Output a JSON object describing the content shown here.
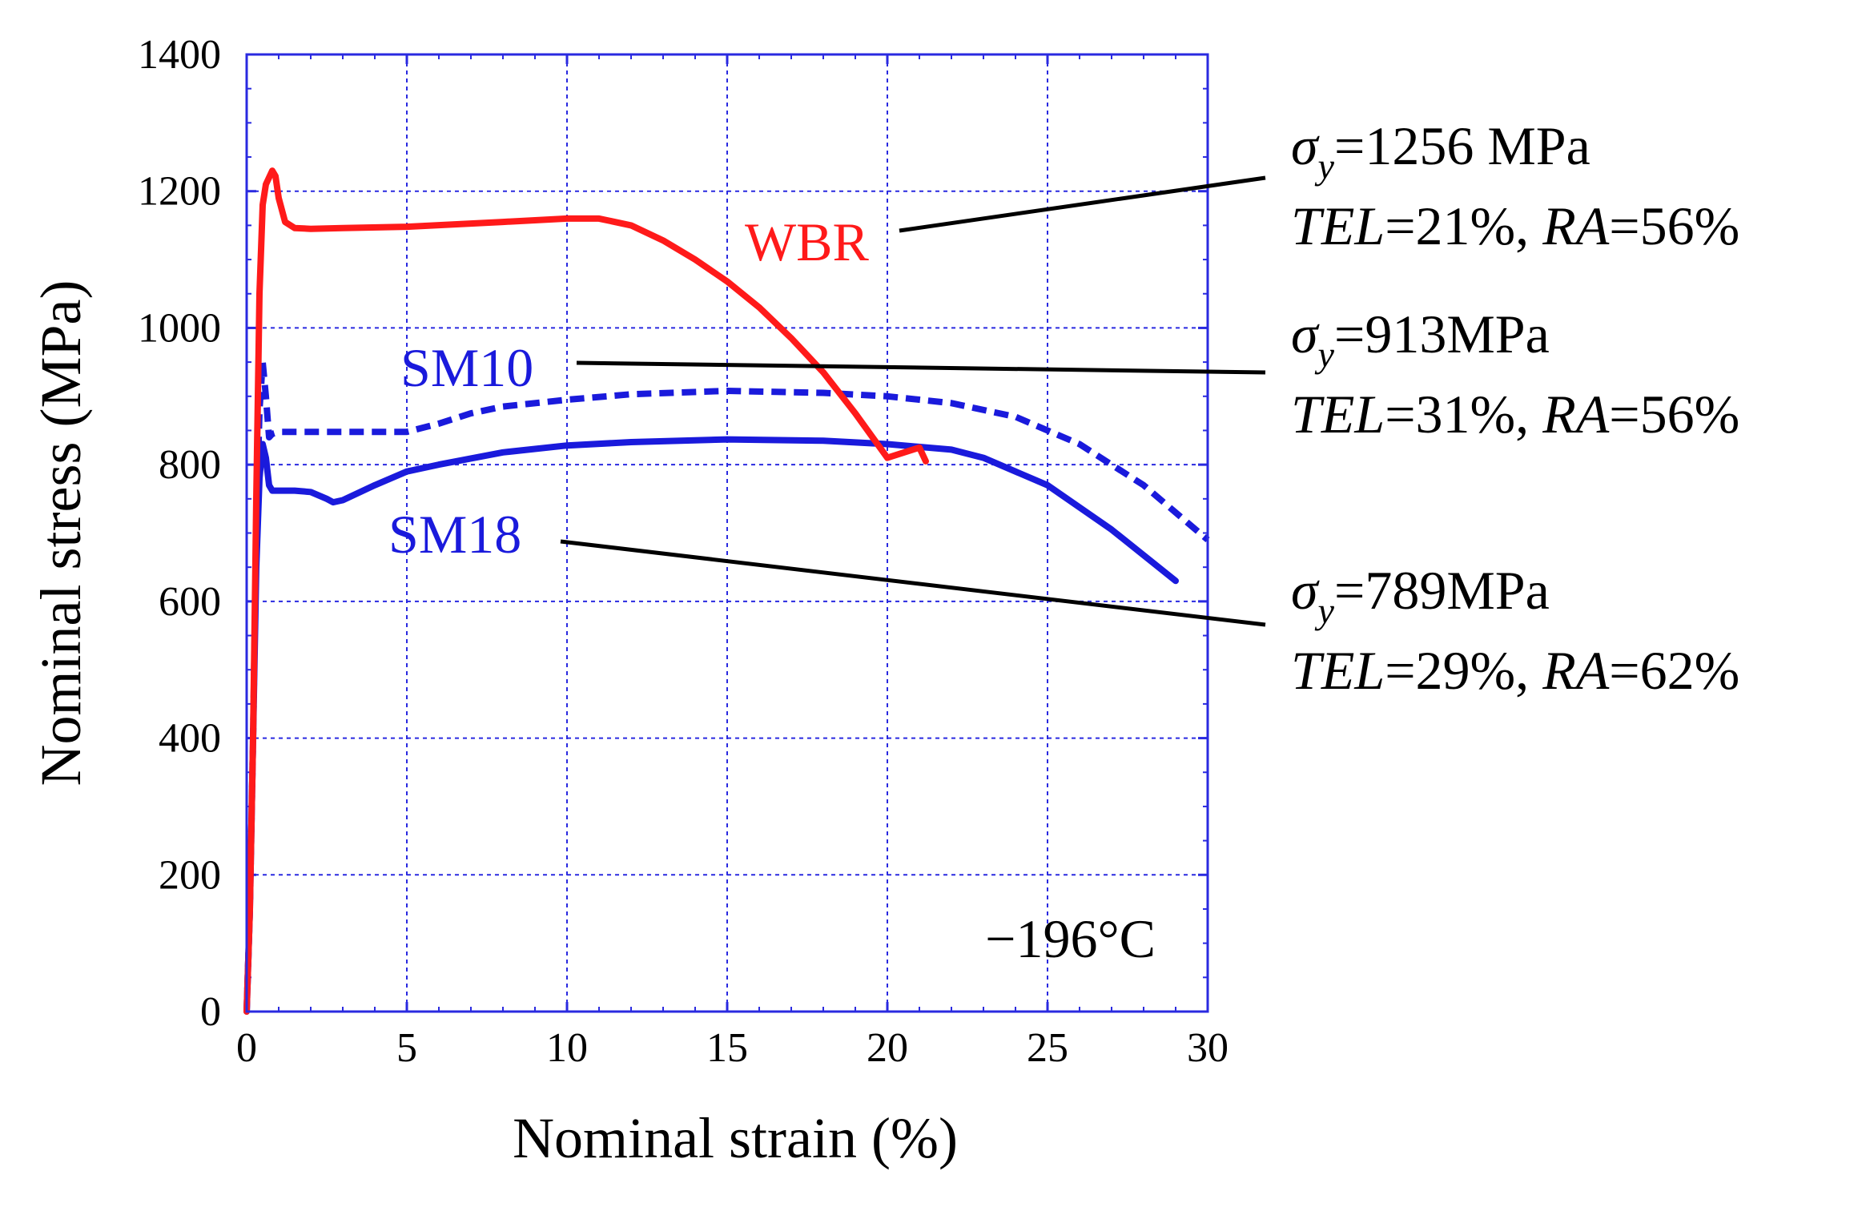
{
  "chart_data": {
    "type": "line",
    "title": "",
    "xlabel": "Nominal strain (%)",
    "ylabel": "Nominal stress (MPa)",
    "xlim": [
      0,
      30
    ],
    "ylim": [
      0,
      1400
    ],
    "xticks": [
      0,
      5,
      10,
      15,
      20,
      25,
      30
    ],
    "yticks": [
      0,
      200,
      400,
      600,
      800,
      1000,
      1200,
      1400
    ],
    "grid": true,
    "temperature": "−196°C",
    "colors": {
      "WBR": "#ff1a1a",
      "SM": "#1a1adc",
      "grid": "#2a2ae0",
      "annotation": "#000000"
    },
    "series": [
      {
        "name": "SM10",
        "label": "SM10",
        "color": "#1a1adc",
        "dash": true,
        "x": [
          0,
          0.1,
          0.2,
          0.3,
          0.4,
          0.5,
          0.6,
          0.7,
          0.8,
          1,
          2,
          3,
          4,
          5,
          6,
          7,
          8,
          10,
          12,
          15,
          18,
          20,
          22,
          24,
          26,
          28,
          30
        ],
        "y": [
          0,
          150,
          400,
          700,
          880,
          950,
          900,
          840,
          845,
          848,
          848,
          848,
          848,
          848,
          860,
          875,
          885,
          895,
          903,
          908,
          905,
          900,
          890,
          870,
          830,
          770,
          690
        ]
      },
      {
        "name": "SM18",
        "label": "SM18",
        "color": "#1a1adc",
        "dash": false,
        "x": [
          0,
          0.1,
          0.2,
          0.3,
          0.4,
          0.5,
          0.6,
          0.7,
          0.8,
          1,
          1.5,
          2,
          2.5,
          2.7,
          3,
          4,
          5,
          6,
          8,
          10,
          12,
          15,
          18,
          20,
          22,
          23,
          25,
          27,
          29
        ],
        "y": [
          0,
          150,
          400,
          650,
          780,
          830,
          810,
          770,
          762,
          762,
          762,
          760,
          750,
          745,
          748,
          770,
          790,
          800,
          818,
          828,
          833,
          837,
          835,
          830,
          822,
          810,
          770,
          705,
          630
        ]
      },
      {
        "name": "WBR",
        "label": "WBR",
        "color": "#ff1a1a",
        "dash": false,
        "x": [
          0,
          0.1,
          0.2,
          0.3,
          0.4,
          0.5,
          0.6,
          0.8,
          0.9,
          1,
          1.2,
          1.5,
          2,
          3,
          5,
          8,
          10,
          11,
          12,
          13,
          14,
          15,
          16,
          17,
          18,
          19,
          20,
          21,
          21.2
        ],
        "y": [
          0,
          150,
          400,
          750,
          1050,
          1180,
          1210,
          1230,
          1222,
          1190,
          1155,
          1146,
          1145,
          1146,
          1148,
          1155,
          1160,
          1160,
          1150,
          1128,
          1100,
          1068,
          1030,
          985,
          935,
          875,
          810,
          825,
          805
        ]
      }
    ],
    "annotations": [
      {
        "target": "WBR",
        "sigma": "σ",
        "sub": "y",
        "yield_text": "=1256 MPa",
        "line2_a": "TEL",
        "line2_b": "=21%, ",
        "line2_c": "RA",
        "line2_d": "=56%"
      },
      {
        "target": "SM10",
        "sigma": "σ",
        "sub": "y",
        "yield_text": "=913MPa",
        "line2_a": "TEL",
        "line2_b": "=31%, ",
        "line2_c": "RA",
        "line2_d": "=56%"
      },
      {
        "target": "SM18",
        "sigma": "σ",
        "sub": "y",
        "yield_text": "=789MPa",
        "line2_a": "TEL",
        "line2_b": "=29%, ",
        "line2_c": "RA",
        "line2_d": "=62%"
      }
    ]
  }
}
